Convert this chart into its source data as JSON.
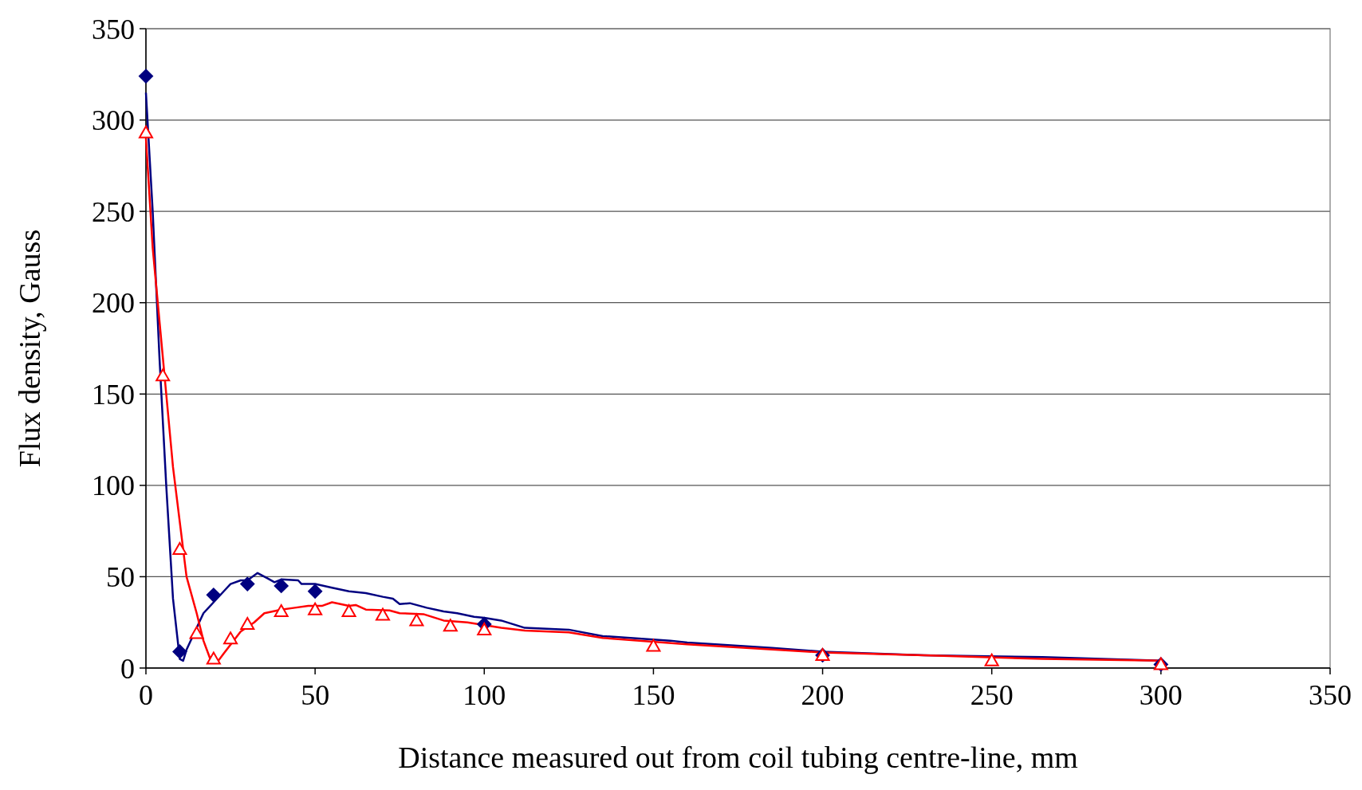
{
  "chart_data": {
    "type": "line",
    "xlabel": "Distance measured out from coil tubing centre-line, mm",
    "ylabel": "Flux density, Gauss",
    "xlim": [
      0,
      350
    ],
    "xticks": [
      0,
      50,
      100,
      150,
      200,
      250,
      300,
      350
    ],
    "ylim": [
      0,
      350
    ],
    "yticks": [
      0,
      50,
      100,
      150,
      200,
      250,
      300,
      350
    ],
    "grid": "y",
    "series": [
      {
        "marker": "none",
        "color": "#000080",
        "x": [
          0,
          2,
          4,
          6,
          8,
          10,
          11,
          12,
          15,
          17,
          20,
          23,
          25,
          28,
          30,
          33,
          36,
          38,
          40,
          45,
          46,
          50,
          55,
          60,
          65,
          70,
          73,
          75,
          78,
          83,
          88,
          92,
          97,
          100,
          105,
          112,
          125,
          135,
          155,
          160,
          185,
          200,
          230,
          265,
          300
        ],
        "values": [
          315,
          250,
          170,
          100,
          38,
          5,
          4,
          10,
          22,
          30,
          36,
          42,
          46,
          48,
          48,
          52,
          49,
          47,
          48.5,
          48,
          46,
          46,
          44,
          42,
          41,
          39,
          38,
          35,
          35.5,
          33,
          31,
          30,
          28,
          27.5,
          26,
          22,
          21,
          17.5,
          15,
          14,
          11,
          9,
          7,
          6,
          4
        ]
      },
      {
        "marker": "none",
        "color": "#ff0000",
        "x": [
          0,
          2,
          5,
          8,
          10,
          12,
          15,
          17,
          19,
          21,
          23,
          28,
          32,
          35,
          40,
          44,
          48,
          52,
          55,
          60,
          62,
          65,
          72,
          75,
          82,
          88,
          95,
          105,
          112,
          125,
          135,
          160,
          200,
          230,
          265,
          300
        ],
        "values": [
          290,
          230,
          170,
          110,
          80,
          50,
          30,
          15,
          5,
          3,
          8,
          20,
          25,
          30,
          32,
          33,
          34,
          34,
          36,
          34,
          34.5,
          32,
          31.5,
          30,
          29.5,
          26,
          25,
          22,
          20.5,
          19.5,
          16.5,
          13,
          8.5,
          7,
          5,
          4
        ]
      },
      {
        "type": "scatter",
        "marker": "diamond",
        "color": "#000080",
        "x": [
          0,
          10,
          20,
          30,
          40,
          50,
          100,
          200,
          300
        ],
        "values": [
          324,
          9,
          40,
          46,
          45,
          42,
          24,
          7,
          2
        ]
      },
      {
        "type": "scatter",
        "marker": "triangle",
        "color": "#ff0000",
        "x": [
          0,
          5,
          10,
          15,
          20,
          25,
          30,
          40,
          50,
          60,
          70,
          80,
          90,
          100,
          150,
          200,
          250,
          300
        ],
        "values": [
          293,
          160,
          65,
          19,
          5,
          16,
          24,
          31,
          32,
          31,
          29,
          26,
          23,
          21,
          12,
          7,
          4,
          2
        ]
      }
    ]
  }
}
